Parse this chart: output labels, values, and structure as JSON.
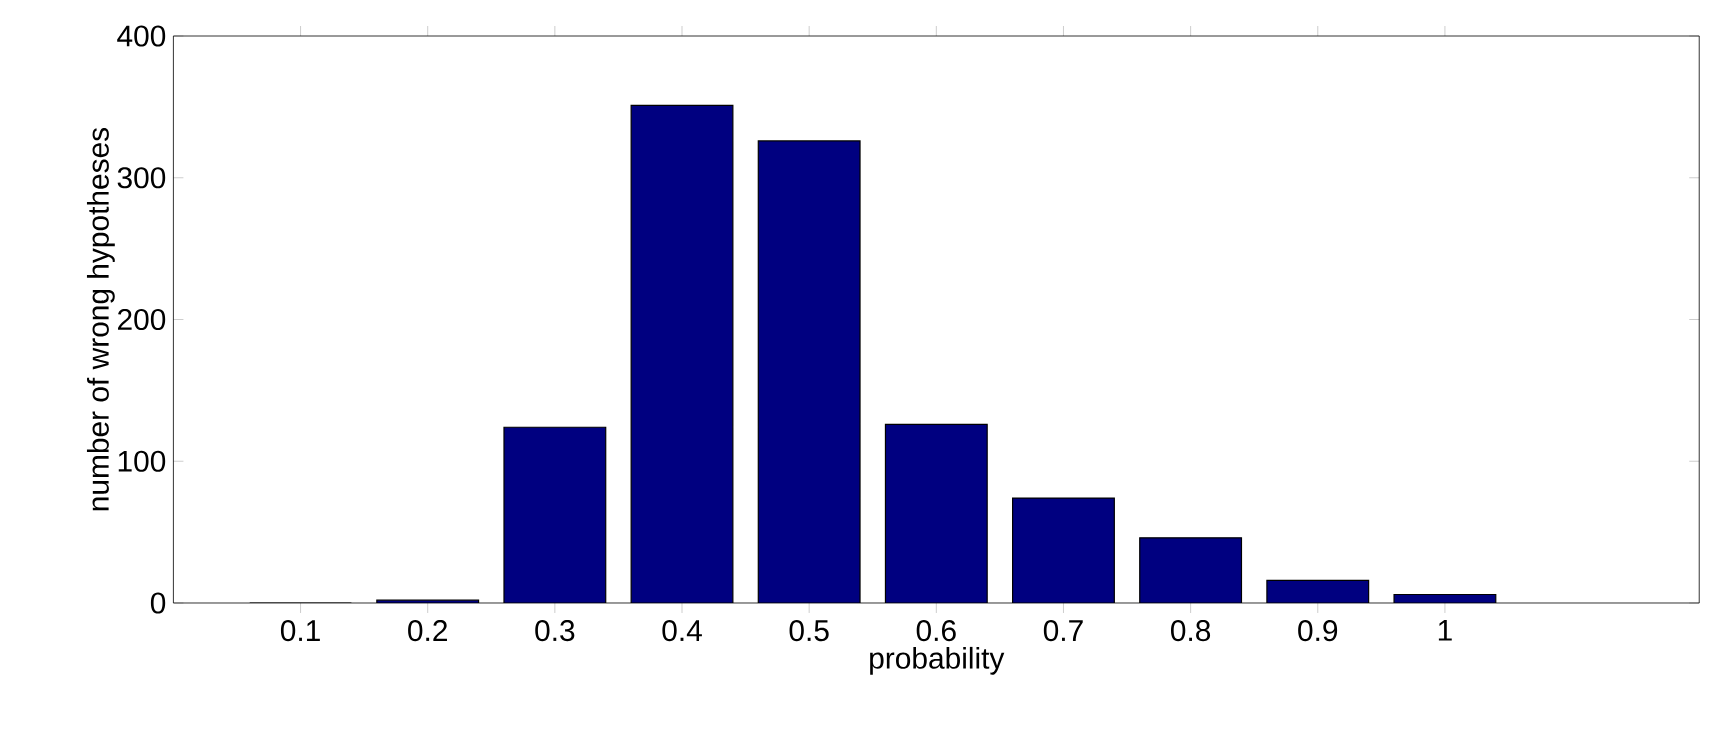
{
  "chart_data": {
    "type": "bar",
    "xlabel": "probability",
    "ylabel": "number of wrong hypotheses",
    "x": [
      0.1,
      0.2,
      0.3,
      0.4,
      0.5,
      0.6,
      0.7,
      0.8,
      0.9,
      1
    ],
    "values": [
      0,
      2,
      124,
      351,
      326,
      126,
      74,
      46,
      16,
      6
    ],
    "color": "#000080",
    "xlim": [
      0,
      1.2
    ],
    "ylim": [
      0,
      400
    ],
    "xticks": [
      0.1,
      0.2,
      0.3,
      0.4,
      0.5,
      0.6,
      0.7,
      0.8,
      0.9,
      1
    ],
    "yticks": [
      0,
      100,
      200,
      300,
      400
    ]
  }
}
